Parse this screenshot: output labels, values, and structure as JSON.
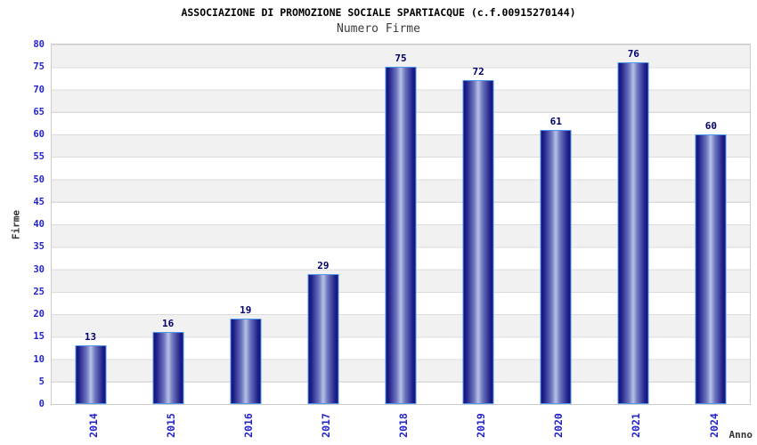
{
  "chart_data": {
    "type": "bar",
    "title": "ASSOCIAZIONE DI PROMOZIONE SOCIALE SPARTIACQUE (c.f.00915270144)",
    "subtitle": "Numero Firme",
    "xlabel": "Anno",
    "ylabel": "Firme",
    "categories": [
      "2014",
      "2015",
      "2016",
      "2017",
      "2018",
      "2019",
      "2020",
      "2021",
      "2024"
    ],
    "values": [
      13,
      16,
      19,
      29,
      75,
      72,
      61,
      76,
      60
    ],
    "ylim": [
      0,
      80
    ],
    "ytick_step": 5,
    "grid": true,
    "legend": "none",
    "band_colors": [
      "#f1f1f1",
      "#ffffff"
    ],
    "colors": {
      "title": "#000000",
      "subtitle": "#3c3c3c",
      "axis_label": "#333333",
      "tick_label": "#2323cc",
      "value_label": "#00006a",
      "bar_dark": "#10107a",
      "bar_light": "#b9c1e6",
      "bar_outline": "#4e96e8",
      "gridline": "#dcdcdc",
      "plot_border": "#cccccc"
    }
  }
}
